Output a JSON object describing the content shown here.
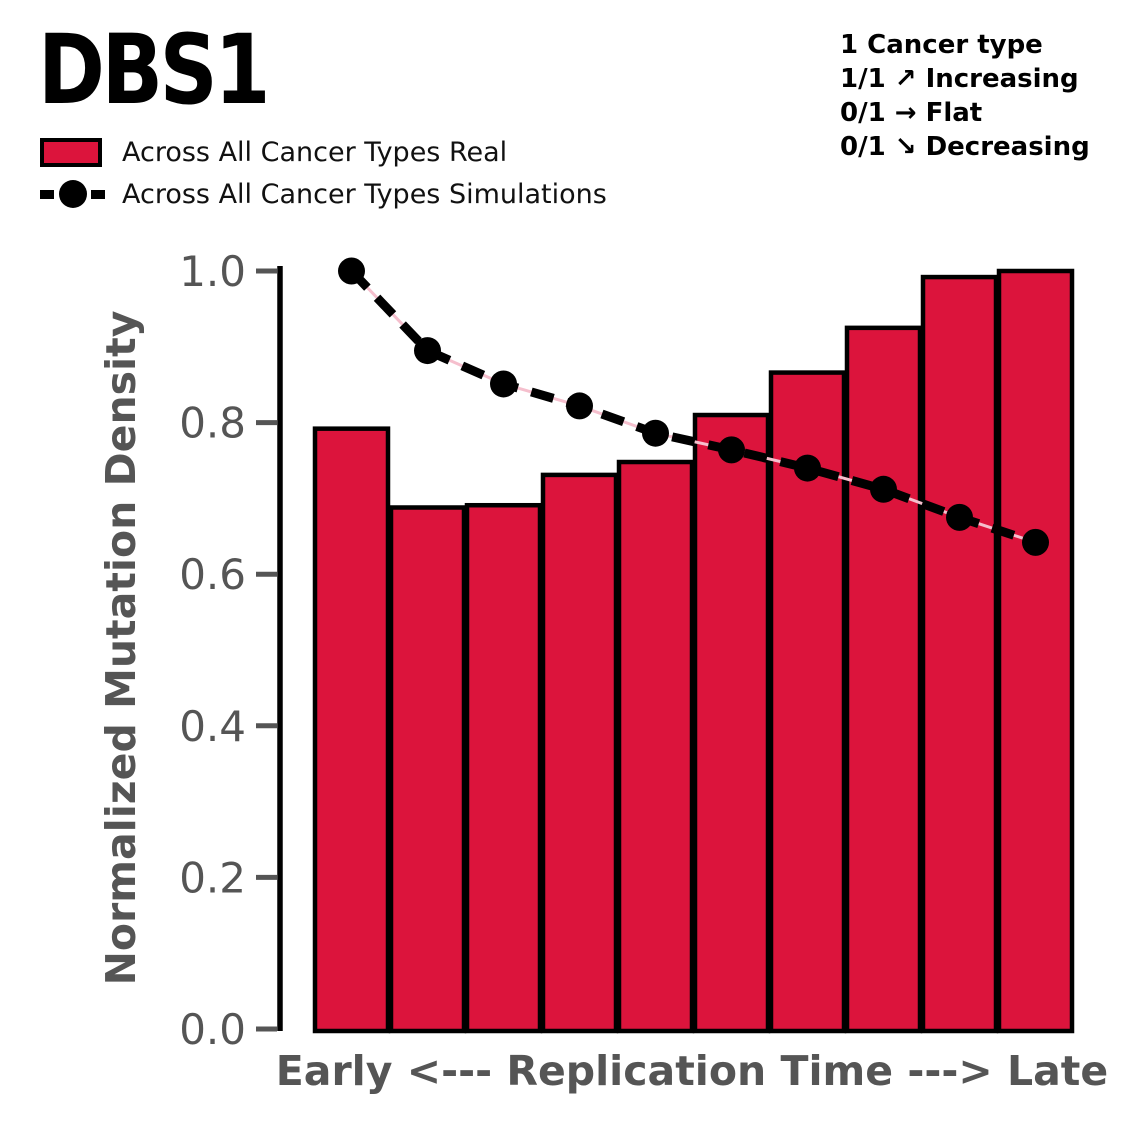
{
  "title": "DBS1",
  "legend": {
    "real_label": "Across All Cancer Types Real",
    "simulations_label": "Across All Cancer Types Simulations"
  },
  "stats": {
    "lines": [
      "1 Cancer type",
      "1/1 ↗ Increasing",
      "0/1 → Flat",
      "0/1 ↘ Decreasing"
    ]
  },
  "colors": {
    "bar_fill": "#DC143C",
    "bar_edge": "#000000",
    "sim_line": "#000000",
    "sim_underlay": "#F5BFCD",
    "axis_spine": "#000000",
    "axis_text": "#555555",
    "tick_mark": "#555555"
  },
  "chart_data": {
    "type": "bar",
    "title": "DBS1",
    "xlabel": "Early <--- Replication Time ---> Late",
    "ylabel": "Normalized Mutation Density",
    "ylim": [
      0,
      1.0
    ],
    "yticks": [
      0.0,
      0.2,
      0.4,
      0.6,
      0.8,
      1.0
    ],
    "ytick_labels": [
      "0.0",
      "0.2",
      "0.4",
      "0.6",
      "0.8",
      "1.0"
    ],
    "x": [
      1,
      2,
      3,
      4,
      5,
      6,
      7,
      8,
      9,
      10
    ],
    "grid": false,
    "legend_position": "upper-left-outside",
    "series": [
      {
        "name": "Across All Cancer Types Real",
        "type": "bar",
        "values": [
          0.792,
          0.688,
          0.691,
          0.731,
          0.748,
          0.81,
          0.866,
          0.925,
          0.992,
          1.0
        ]
      },
      {
        "name": "Across All Cancer Types Simulations",
        "type": "line-dashed-with-markers",
        "values": [
          1.0,
          0.895,
          0.851,
          0.822,
          0.786,
          0.764,
          0.74,
          0.712,
          0.675,
          0.642
        ]
      }
    ]
  }
}
